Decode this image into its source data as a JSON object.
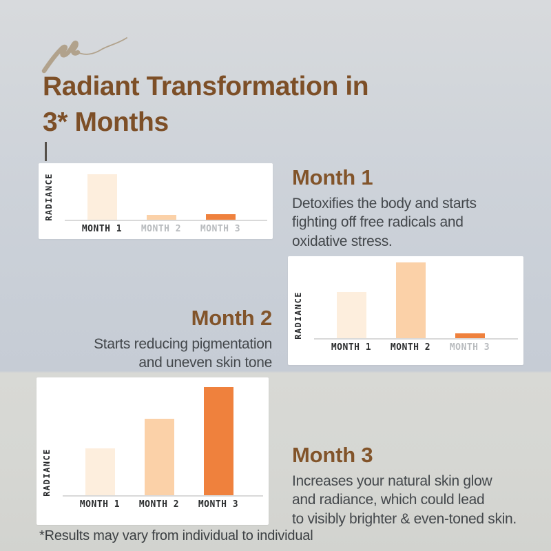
{
  "header": {
    "title": "Radiant Transformation in\n3* Months"
  },
  "sections": [
    {
      "heading": "Month 1",
      "body": "Detoxifies the body and starts\nfighting off free radicals and\noxidative stress."
    },
    {
      "heading": "Month 2",
      "body": "Starts reducing pigmentation\nand uneven skin tone"
    },
    {
      "heading": "Month 3",
      "body": "Increases your natural skin glow\nand radiance, which could lead\nto visibly brighter & even-toned skin."
    }
  ],
  "footnote": "*Results may vary from individual to individual",
  "colors": {
    "title_brown": "#7d4f27",
    "heading_brown": "#82542a",
    "body_text": "#43474b",
    "bar_light": "#fdeedd",
    "bar_medium": "#fbd1a8",
    "bar_orange": "#ef813d",
    "scribble_tan": "#b1a28c",
    "card_white": "#ffffff"
  },
  "chart_data": [
    {
      "type": "bar",
      "ylabel": "RADIANCE",
      "categories": [
        "MONTH 1",
        "MONTH 2",
        "MONTH 3"
      ],
      "values": [
        82,
        9,
        10
      ],
      "units": "relative radiance (0-100, no numeric axis shown)",
      "bar_colors": [
        "#fdeedd",
        "#fbd1a8",
        "#ef813d"
      ],
      "muted_labels": [
        false,
        true,
        true
      ],
      "grid": false,
      "legend": false
    },
    {
      "type": "bar",
      "ylabel": "RADIANCE",
      "categories": [
        "MONTH 1",
        "MONTH 2",
        "MONTH 3"
      ],
      "values": [
        58,
        96,
        6
      ],
      "units": "relative radiance (0-100, no numeric axis shown)",
      "bar_colors": [
        "#fdeedd",
        "#fbd1a8",
        "#ef813d"
      ],
      "muted_labels": [
        false,
        false,
        true
      ],
      "grid": false,
      "legend": false
    },
    {
      "type": "bar",
      "ylabel": "RADIANCE",
      "categories": [
        "MONTH 1",
        "MONTH 2",
        "MONTH 3"
      ],
      "values": [
        41,
        67,
        95
      ],
      "units": "relative radiance (0-100, no numeric axis shown)",
      "bar_colors": [
        "#fdeedd",
        "#fbd1a8",
        "#ef813d"
      ],
      "muted_labels": [
        false,
        false,
        false
      ],
      "grid": false,
      "legend": false
    }
  ]
}
